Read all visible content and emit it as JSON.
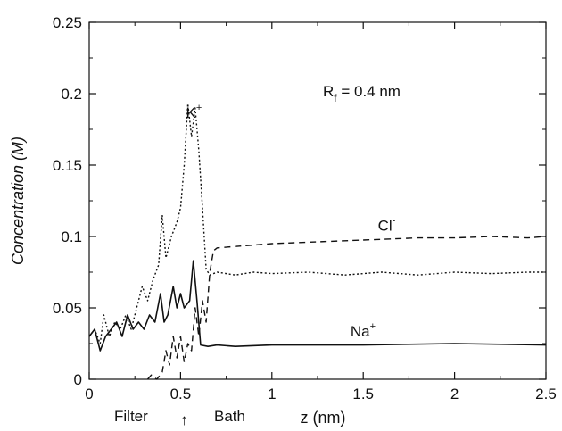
{
  "chart_data": {
    "type": "line",
    "title": "",
    "xlabel": "z (nm)",
    "ylabel": "Concentration (M)",
    "xlim": [
      0,
      2.5
    ],
    "ylim": [
      0,
      0.25
    ],
    "x_ticks": [
      "0",
      "0.5",
      "1",
      "1.5",
      "2",
      "2.5"
    ],
    "y_ticks": [
      "0",
      "0.05",
      "0.1",
      "0.15",
      "0.2",
      "0.25"
    ],
    "grid": false,
    "legend": "none",
    "annotations": {
      "rf_main": "R",
      "rf_sub": "f",
      "rf_value": " = 0.4 nm",
      "filter": "Filter",
      "bath": "Bath",
      "arrow": "↑",
      "arrow_x": 0.52
    },
    "series": [
      {
        "label_main": "K",
        "label_sup": "+",
        "label_x": 0.53,
        "label_y": 0.183,
        "style": "dotted",
        "points": [
          [
            0,
            0.03
          ],
          [
            0.03,
            0.035
          ],
          [
            0.06,
            0.025
          ],
          [
            0.08,
            0.045
          ],
          [
            0.11,
            0.03
          ],
          [
            0.14,
            0.04
          ],
          [
            0.17,
            0.035
          ],
          [
            0.2,
            0.045
          ],
          [
            0.23,
            0.035
          ],
          [
            0.26,
            0.05
          ],
          [
            0.29,
            0.065
          ],
          [
            0.32,
            0.055
          ],
          [
            0.35,
            0.07
          ],
          [
            0.38,
            0.08
          ],
          [
            0.4,
            0.115
          ],
          [
            0.42,
            0.085
          ],
          [
            0.45,
            0.1
          ],
          [
            0.48,
            0.11
          ],
          [
            0.5,
            0.12
          ],
          [
            0.52,
            0.15
          ],
          [
            0.54,
            0.193
          ],
          [
            0.56,
            0.17
          ],
          [
            0.58,
            0.19
          ],
          [
            0.6,
            0.16
          ],
          [
            0.62,
            0.12
          ],
          [
            0.64,
            0.077
          ],
          [
            0.66,
            0.073
          ],
          [
            0.7,
            0.075
          ],
          [
            0.8,
            0.073
          ],
          [
            0.9,
            0.075
          ],
          [
            1.0,
            0.074
          ],
          [
            1.2,
            0.075
          ],
          [
            1.4,
            0.073
          ],
          [
            1.6,
            0.075
          ],
          [
            1.8,
            0.073
          ],
          [
            2.0,
            0.075
          ],
          [
            2.2,
            0.074
          ],
          [
            2.4,
            0.075
          ],
          [
            2.5,
            0.075
          ]
        ]
      },
      {
        "label_main": "Cl",
        "label_sup": "-",
        "label_x": 1.58,
        "label_y": 0.104,
        "style": "dashed",
        "points": [
          [
            0.32,
            0.0
          ],
          [
            0.34,
            0.003
          ],
          [
            0.37,
            0.0
          ],
          [
            0.4,
            0.005
          ],
          [
            0.42,
            0.02
          ],
          [
            0.44,
            0.01
          ],
          [
            0.46,
            0.03
          ],
          [
            0.48,
            0.015
          ],
          [
            0.5,
            0.03
          ],
          [
            0.52,
            0.012
          ],
          [
            0.54,
            0.025
          ],
          [
            0.56,
            0.02
          ],
          [
            0.58,
            0.05
          ],
          [
            0.6,
            0.03
          ],
          [
            0.62,
            0.055
          ],
          [
            0.64,
            0.04
          ],
          [
            0.66,
            0.075
          ],
          [
            0.68,
            0.09
          ],
          [
            0.7,
            0.092
          ],
          [
            0.8,
            0.093
          ],
          [
            0.9,
            0.094
          ],
          [
            1.0,
            0.095
          ],
          [
            1.2,
            0.096
          ],
          [
            1.4,
            0.097
          ],
          [
            1.6,
            0.098
          ],
          [
            1.8,
            0.099
          ],
          [
            2.0,
            0.099
          ],
          [
            2.2,
            0.1
          ],
          [
            2.4,
            0.099
          ],
          [
            2.5,
            0.1
          ]
        ]
      },
      {
        "label_main": "Na",
        "label_sup": "+",
        "label_x": 1.43,
        "label_y": 0.03,
        "style": "solid",
        "points": [
          [
            0,
            0.03
          ],
          [
            0.03,
            0.035
          ],
          [
            0.06,
            0.02
          ],
          [
            0.09,
            0.03
          ],
          [
            0.12,
            0.035
          ],
          [
            0.15,
            0.04
          ],
          [
            0.18,
            0.03
          ],
          [
            0.21,
            0.045
          ],
          [
            0.24,
            0.035
          ],
          [
            0.27,
            0.04
          ],
          [
            0.3,
            0.035
          ],
          [
            0.33,
            0.045
          ],
          [
            0.36,
            0.04
          ],
          [
            0.39,
            0.06
          ],
          [
            0.41,
            0.04
          ],
          [
            0.43,
            0.045
          ],
          [
            0.46,
            0.065
          ],
          [
            0.48,
            0.05
          ],
          [
            0.5,
            0.06
          ],
          [
            0.52,
            0.05
          ],
          [
            0.55,
            0.055
          ],
          [
            0.57,
            0.083
          ],
          [
            0.59,
            0.055
          ],
          [
            0.61,
            0.024
          ],
          [
            0.65,
            0.023
          ],
          [
            0.7,
            0.024
          ],
          [
            0.8,
            0.023
          ],
          [
            1.0,
            0.024
          ],
          [
            1.2,
            0.024
          ],
          [
            1.5,
            0.024
          ],
          [
            2.0,
            0.025
          ],
          [
            2.5,
            0.024
          ]
        ]
      }
    ]
  }
}
